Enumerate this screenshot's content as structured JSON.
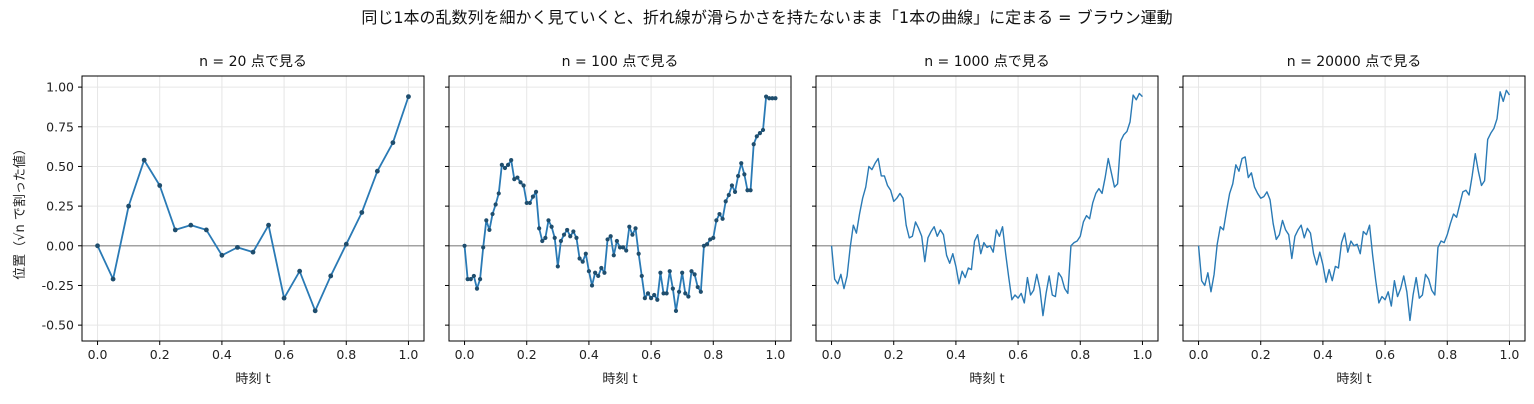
{
  "figure": {
    "title": "同じ1本の乱数列を細かく見ていくと、折れ線が滑らかさを持たないまま「1本の曲線」に定まる = ブラウン運動",
    "ylabel": "位置（√n で割った値）"
  },
  "colors": {
    "line": "#2a7ab5",
    "marker": "#1f4e6e",
    "zero_line": "#888888",
    "grid": "#e6e6e6"
  },
  "chart_data": [
    {
      "type": "line",
      "title": "n = 20 点で見る",
      "xlabel": "時刻 t",
      "ylabel": "位置（√n で割った値）",
      "xlim": [
        -0.05,
        1.05
      ],
      "ylim": [
        -0.6,
        1.07
      ],
      "xticks": [
        "0.0",
        "0.2",
        "0.4",
        "0.6",
        "0.8",
        "1.0"
      ],
      "yticks": [
        "-0.50",
        "-0.25",
        "0.00",
        "0.25",
        "0.50",
        "0.75",
        "1.00"
      ],
      "markers": true,
      "x": [
        0,
        0.05,
        0.1,
        0.15,
        0.2,
        0.25,
        0.3,
        0.35,
        0.4,
        0.45,
        0.5,
        0.55,
        0.6,
        0.65,
        0.7,
        0.75,
        0.8,
        0.85,
        0.9,
        0.95,
        1.0
      ],
      "y": [
        0,
        -0.21,
        0.25,
        0.54,
        0.38,
        0.1,
        0.13,
        0.1,
        -0.06,
        -0.01,
        -0.04,
        0.13,
        -0.33,
        -0.16,
        -0.41,
        -0.19,
        0.01,
        0.21,
        0.47,
        0.65,
        0.94
      ]
    },
    {
      "type": "line",
      "title": "n = 100 点で見る",
      "xlabel": "時刻 t",
      "xlim": [
        -0.05,
        1.05
      ],
      "ylim": [
        -0.6,
        1.07
      ],
      "xticks": [
        "0.0",
        "0.2",
        "0.4",
        "0.6",
        "0.8",
        "1.0"
      ],
      "markers": true,
      "x": [
        0,
        0.01,
        0.02,
        0.03,
        0.04,
        0.05,
        0.06,
        0.07,
        0.08,
        0.09,
        0.1,
        0.11,
        0.12,
        0.13,
        0.14,
        0.15,
        0.16,
        0.17,
        0.18,
        0.19,
        0.2,
        0.21,
        0.22,
        0.23,
        0.24,
        0.25,
        0.26,
        0.27,
        0.28,
        0.29,
        0.3,
        0.31,
        0.32,
        0.33,
        0.34,
        0.35,
        0.36,
        0.37,
        0.38,
        0.39,
        0.4,
        0.41,
        0.42,
        0.43,
        0.44,
        0.45,
        0.46,
        0.47,
        0.48,
        0.49,
        0.5,
        0.51,
        0.52,
        0.53,
        0.54,
        0.55,
        0.56,
        0.57,
        0.58,
        0.59,
        0.6,
        0.61,
        0.62,
        0.63,
        0.64,
        0.65,
        0.66,
        0.67,
        0.68,
        0.69,
        0.7,
        0.71,
        0.72,
        0.73,
        0.74,
        0.75,
        0.76,
        0.77,
        0.78,
        0.79,
        0.8,
        0.81,
        0.82,
        0.83,
        0.84,
        0.85,
        0.86,
        0.87,
        0.88,
        0.89,
        0.9,
        0.91,
        0.92,
        0.93,
        0.94,
        0.95,
        0.96,
        0.97,
        0.98,
        0.99,
        1.0
      ],
      "y": [
        0,
        -0.21,
        -0.21,
        -0.19,
        -0.27,
        -0.21,
        -0.01,
        0.16,
        0.1,
        0.2,
        0.26,
        0.33,
        0.51,
        0.49,
        0.51,
        0.54,
        0.42,
        0.43,
        0.4,
        0.38,
        0.27,
        0.27,
        0.31,
        0.34,
        0.11,
        0.03,
        0.05,
        0.16,
        0.12,
        0.05,
        -0.13,
        0.03,
        0.07,
        0.1,
        0.06,
        0.09,
        0.05,
        -0.08,
        -0.1,
        -0.05,
        -0.16,
        -0.25,
        -0.17,
        -0.19,
        -0.14,
        -0.17,
        0.04,
        0.06,
        -0.06,
        0.03,
        -0.01,
        -0.01,
        -0.03,
        0.12,
        0.07,
        0.11,
        -0.05,
        -0.19,
        -0.33,
        -0.3,
        -0.33,
        -0.31,
        -0.34,
        -0.17,
        -0.3,
        -0.3,
        -0.16,
        -0.27,
        -0.41,
        -0.29,
        -0.17,
        -0.3,
        -0.32,
        -0.16,
        -0.18,
        -0.26,
        -0.29,
        0.0,
        0.01,
        0.04,
        0.05,
        0.16,
        0.2,
        0.17,
        0.28,
        0.32,
        0.38,
        0.34,
        0.44,
        0.52,
        0.45,
        0.35,
        0.35,
        0.64,
        0.69,
        0.71,
        0.73,
        0.94,
        0.93,
        0.93,
        0.93
      ]
    },
    {
      "type": "line",
      "title": "n = 1000 点で見る",
      "xlabel": "時刻 t",
      "xlim": [
        -0.05,
        1.05
      ],
      "ylim": [
        -0.6,
        1.07
      ],
      "xticks": [
        "0.0",
        "0.2",
        "0.4",
        "0.6",
        "0.8",
        "1.0"
      ],
      "markers": false,
      "x": [
        0,
        0.01,
        0.02,
        0.03,
        0.04,
        0.05,
        0.06,
        0.07,
        0.08,
        0.09,
        0.1,
        0.11,
        0.12,
        0.13,
        0.14,
        0.15,
        0.16,
        0.17,
        0.18,
        0.19,
        0.2,
        0.21,
        0.22,
        0.23,
        0.24,
        0.25,
        0.26,
        0.27,
        0.28,
        0.29,
        0.3,
        0.31,
        0.32,
        0.33,
        0.34,
        0.35,
        0.36,
        0.37,
        0.38,
        0.39,
        0.4,
        0.41,
        0.42,
        0.43,
        0.44,
        0.45,
        0.46,
        0.47,
        0.48,
        0.49,
        0.5,
        0.51,
        0.52,
        0.53,
        0.54,
        0.55,
        0.56,
        0.57,
        0.58,
        0.59,
        0.6,
        0.61,
        0.62,
        0.63,
        0.64,
        0.65,
        0.66,
        0.67,
        0.68,
        0.69,
        0.7,
        0.71,
        0.72,
        0.73,
        0.74,
        0.75,
        0.76,
        0.77,
        0.78,
        0.79,
        0.8,
        0.81,
        0.82,
        0.83,
        0.84,
        0.85,
        0.86,
        0.87,
        0.88,
        0.89,
        0.9,
        0.91,
        0.92,
        0.93,
        0.94,
        0.95,
        0.96,
        0.97,
        0.98,
        0.99,
        1.0
      ],
      "y": [
        0,
        -0.21,
        -0.24,
        -0.18,
        -0.27,
        -0.19,
        -0.01,
        0.13,
        0.08,
        0.2,
        0.3,
        0.37,
        0.5,
        0.48,
        0.52,
        0.55,
        0.44,
        0.44,
        0.38,
        0.35,
        0.28,
        0.3,
        0.33,
        0.3,
        0.13,
        0.05,
        0.06,
        0.15,
        0.11,
        0.06,
        -0.1,
        0.05,
        0.09,
        0.12,
        0.06,
        0.1,
        0.07,
        -0.06,
        -0.11,
        -0.05,
        -0.13,
        -0.24,
        -0.16,
        -0.2,
        -0.14,
        -0.15,
        0.03,
        0.07,
        -0.05,
        0.02,
        -0.01,
        0.0,
        -0.04,
        0.1,
        0.06,
        0.12,
        -0.05,
        -0.2,
        -0.34,
        -0.31,
        -0.33,
        -0.3,
        -0.36,
        -0.2,
        -0.31,
        -0.28,
        -0.18,
        -0.27,
        -0.44,
        -0.3,
        -0.19,
        -0.31,
        -0.32,
        -0.17,
        -0.2,
        -0.27,
        -0.3,
        0.0,
        0.02,
        0.03,
        0.06,
        0.15,
        0.19,
        0.17,
        0.27,
        0.33,
        0.36,
        0.33,
        0.43,
        0.55,
        0.46,
        0.37,
        0.39,
        0.66,
        0.7,
        0.72,
        0.78,
        0.95,
        0.92,
        0.96,
        0.94
      ]
    },
    {
      "type": "line",
      "title": "n = 20000 点で見る",
      "xlabel": "時刻 t",
      "xlim": [
        -0.05,
        1.05
      ],
      "ylim": [
        -0.6,
        1.07
      ],
      "xticks": [
        "0.0",
        "0.2",
        "0.4",
        "0.6",
        "0.8",
        "1.0"
      ],
      "markers": false,
      "x": [
        0,
        0.01,
        0.02,
        0.03,
        0.04,
        0.05,
        0.06,
        0.07,
        0.08,
        0.09,
        0.1,
        0.11,
        0.12,
        0.13,
        0.14,
        0.15,
        0.16,
        0.17,
        0.18,
        0.19,
        0.2,
        0.21,
        0.22,
        0.23,
        0.24,
        0.25,
        0.26,
        0.27,
        0.28,
        0.29,
        0.3,
        0.31,
        0.32,
        0.33,
        0.34,
        0.35,
        0.36,
        0.37,
        0.38,
        0.39,
        0.4,
        0.41,
        0.42,
        0.43,
        0.44,
        0.45,
        0.46,
        0.47,
        0.48,
        0.49,
        0.5,
        0.51,
        0.52,
        0.53,
        0.54,
        0.55,
        0.56,
        0.57,
        0.58,
        0.59,
        0.6,
        0.61,
        0.62,
        0.63,
        0.64,
        0.65,
        0.66,
        0.67,
        0.68,
        0.69,
        0.7,
        0.71,
        0.72,
        0.73,
        0.74,
        0.75,
        0.76,
        0.77,
        0.78,
        0.79,
        0.8,
        0.81,
        0.82,
        0.83,
        0.84,
        0.85,
        0.86,
        0.87,
        0.88,
        0.89,
        0.9,
        0.91,
        0.92,
        0.93,
        0.94,
        0.95,
        0.96,
        0.97,
        0.98,
        0.99,
        1.0
      ],
      "y": [
        0,
        -0.22,
        -0.25,
        -0.17,
        -0.29,
        -0.18,
        0.01,
        0.12,
        0.1,
        0.22,
        0.33,
        0.39,
        0.51,
        0.47,
        0.55,
        0.56,
        0.43,
        0.46,
        0.37,
        0.33,
        0.3,
        0.31,
        0.34,
        0.29,
        0.14,
        0.04,
        0.07,
        0.16,
        0.1,
        0.07,
        -0.08,
        0.06,
        0.1,
        0.13,
        0.05,
        0.11,
        0.08,
        -0.05,
        -0.12,
        -0.04,
        -0.12,
        -0.23,
        -0.15,
        -0.22,
        -0.13,
        -0.14,
        0.02,
        0.08,
        -0.04,
        0.03,
        0.0,
        0.01,
        -0.05,
        0.09,
        0.07,
        0.13,
        -0.06,
        -0.22,
        -0.36,
        -0.32,
        -0.34,
        -0.29,
        -0.38,
        -0.22,
        -0.32,
        -0.27,
        -0.19,
        -0.29,
        -0.47,
        -0.31,
        -0.2,
        -0.33,
        -0.31,
        -0.18,
        -0.21,
        -0.28,
        -0.31,
        -0.01,
        0.03,
        0.02,
        0.07,
        0.14,
        0.2,
        0.18,
        0.26,
        0.34,
        0.35,
        0.32,
        0.44,
        0.58,
        0.47,
        0.38,
        0.41,
        0.67,
        0.71,
        0.74,
        0.8,
        0.97,
        0.91,
        0.98,
        0.95
      ]
    }
  ]
}
